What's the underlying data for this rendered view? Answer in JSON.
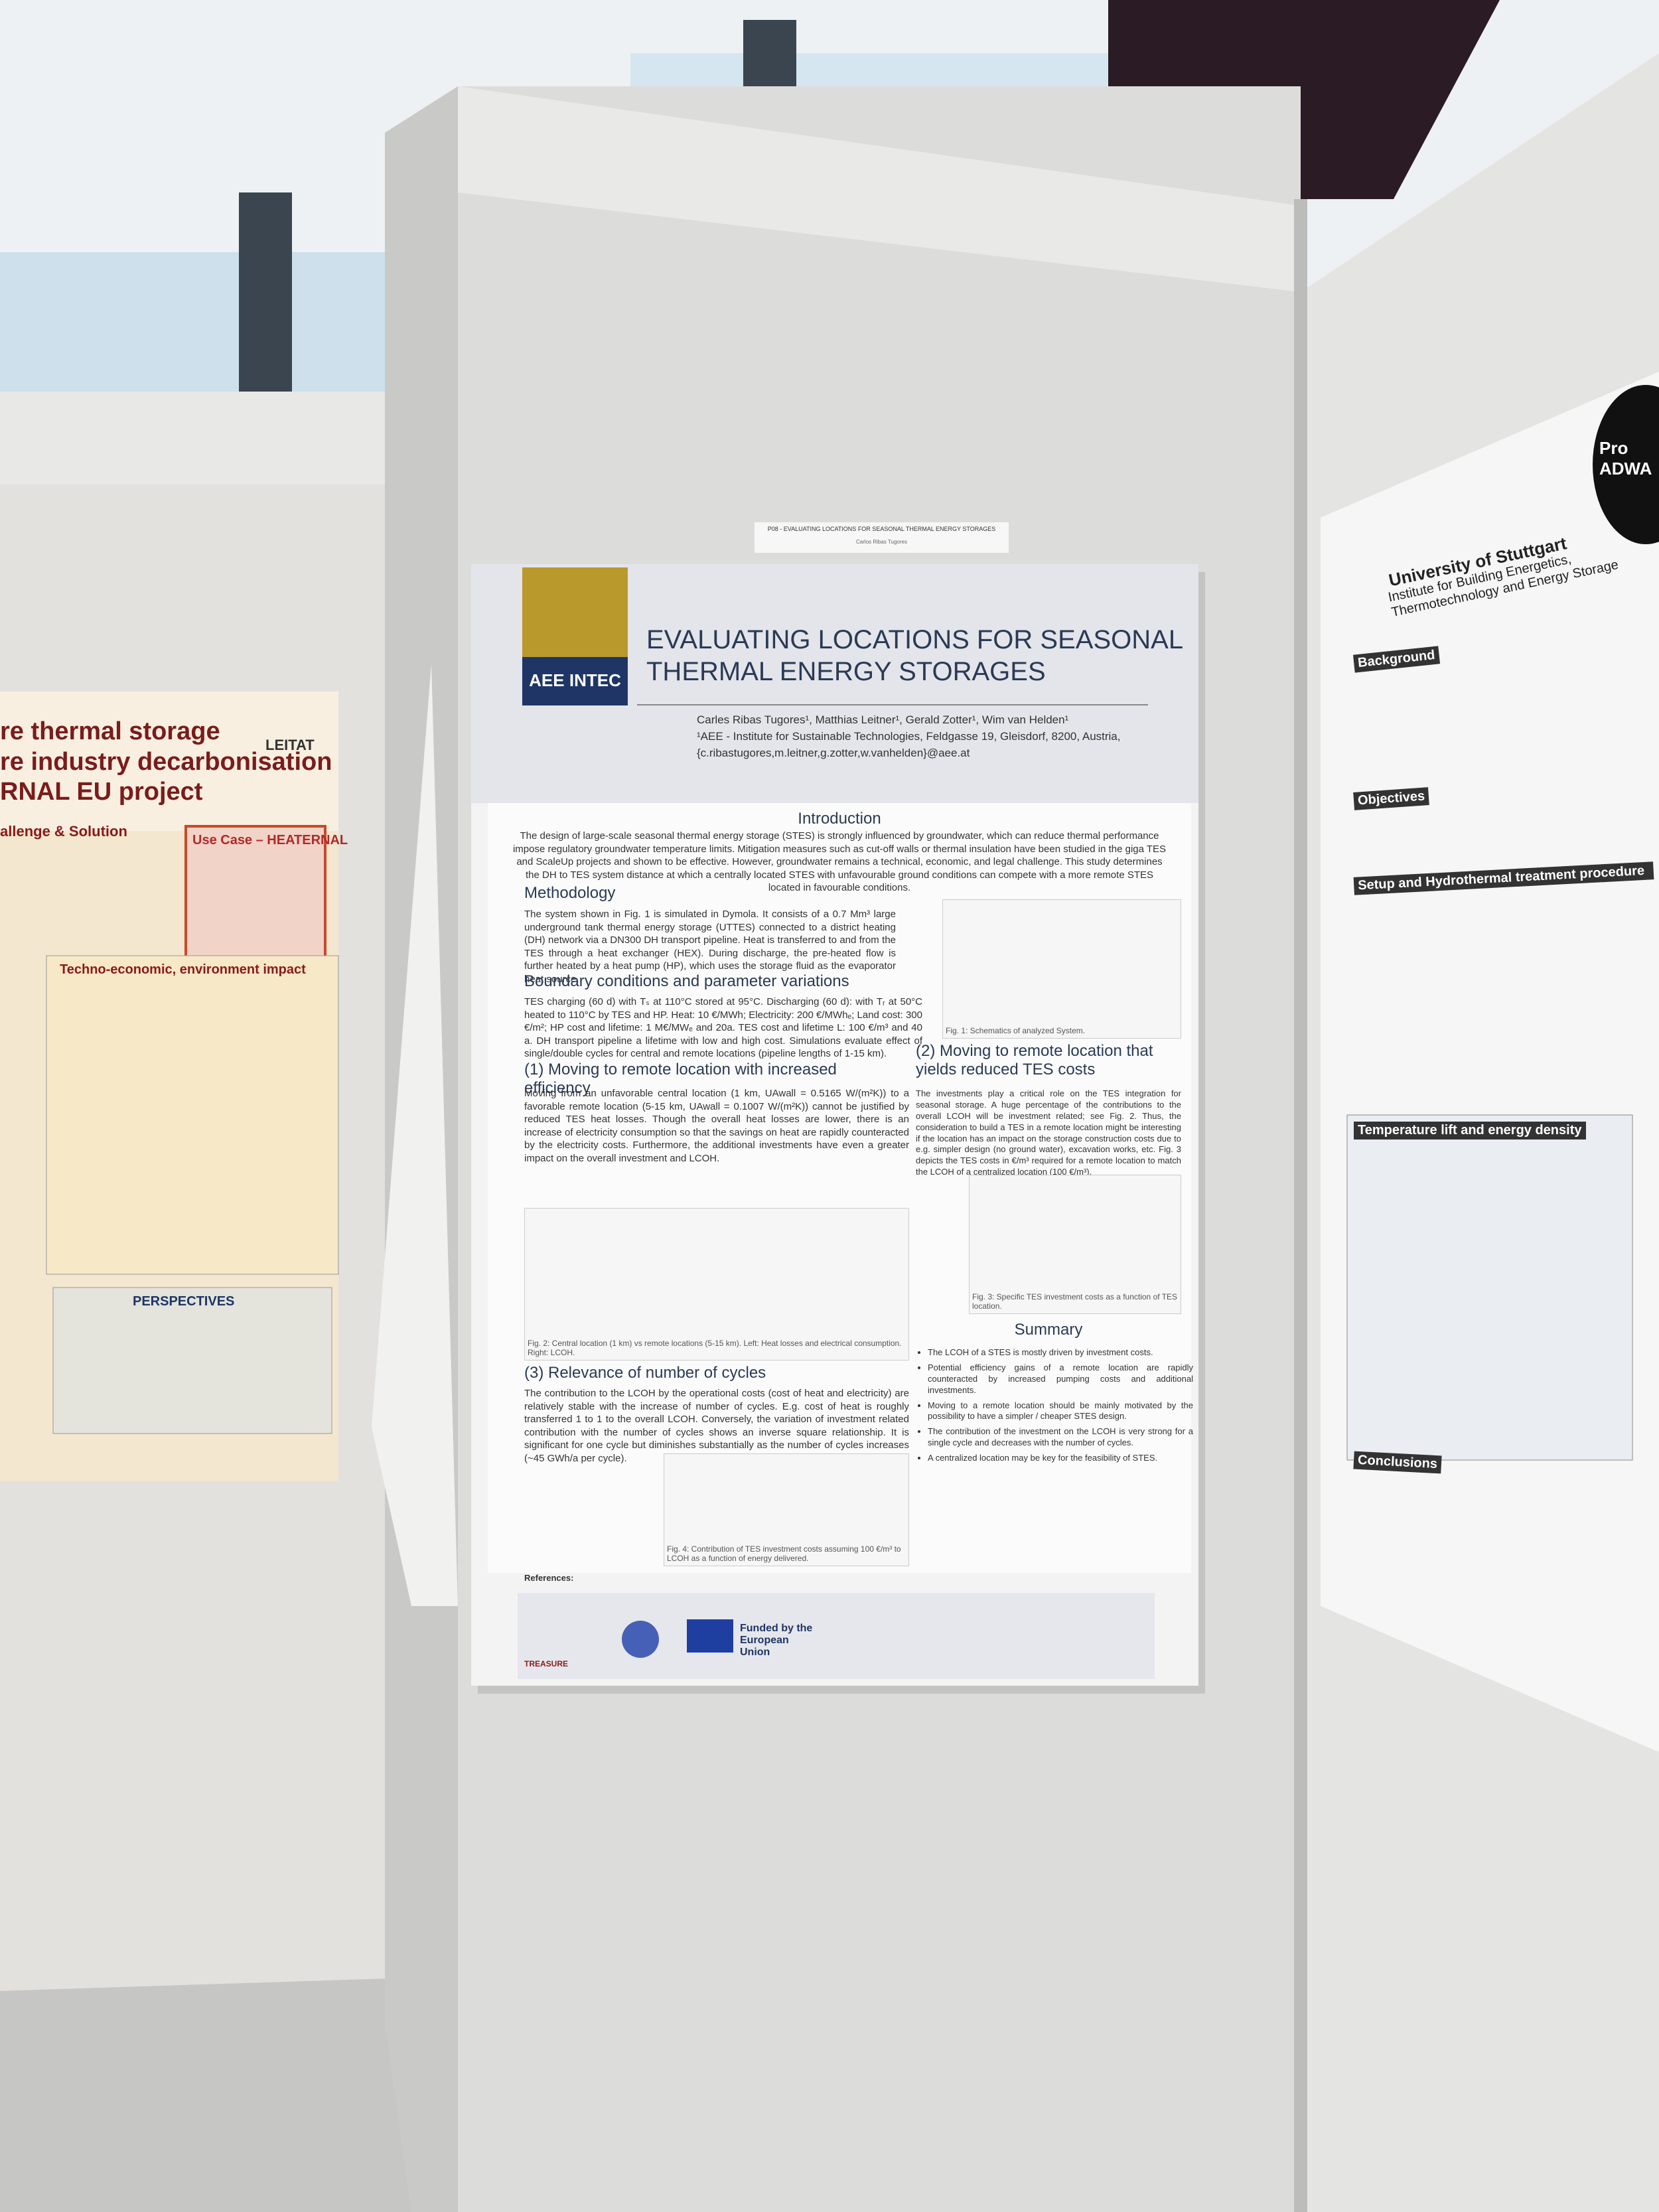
{
  "label_strip": {
    "title": "P08 - EVALUATING LOCATIONS FOR SEASONAL THERMAL ENERGY STORAGES",
    "author": "Carlos Ribas Tugores"
  },
  "poster": {
    "logo": "AEE INTEC",
    "title": "EVALUATING LOCATIONS FOR SEASONAL THERMAL ENERGY STORAGES",
    "authors": "Carles Ribas Tugores¹, Matthias Leitner¹, Gerald Zotter¹, Wim van Helden¹",
    "affiliation": "¹AEE - Institute for Sustainable Technologies, Feldgasse 19, Gleisdorf, 8200, Austria,",
    "email": "{c.ribastugores,m.leitner,g.zotter,w.vanhelden}@aee.at",
    "intro": {
      "heading": "Introduction",
      "text": "The design of large-scale seasonal thermal energy storage (STES) is strongly influenced by groundwater, which can reduce thermal performance impose regulatory groundwater temperature limits. Mitigation measures such as cut-off walls or thermal insulation have been studied in the giga TES and ScaleUp projects and shown to be effective. However, groundwater remains a technical, economic, and legal challenge. This study determines the DH to TES system distance at which a centrally located STES with unfavourable ground conditions can compete with a more remote STES located in favourable conditions."
    },
    "methodology": {
      "heading": "Methodology",
      "text": "The system shown in Fig. 1 is simulated in Dymola. It consists of a 0.7 Mm³ large underground tank thermal energy storage (UTTES) connected to a district heating (DH) network via a DN300 DH transport pipeline. Heat is transferred to and from the TES through a heat exchanger (HEX). During discharge, the pre-heated flow is further heated by a heat pump (HP), which uses the storage fluid as the evaporator heat source.",
      "figure": "Fig. 1: Schematics of analyzed System."
    },
    "boundary": {
      "heading": "Boundary conditions and parameter variations",
      "text": "TES charging (60 d) with Tₛ at 110°C stored at 95°C. Discharging (60 d): with Tᵣ at 50°C heated to 110°C by TES and HP. Heat: 10 €/MWh; Electricity: 200 €/MWhₑ; Land cost: 300 €/m²; HP cost and lifetime: 1 M€/MWₑ and 20a. TES cost and lifetime L: 100 €/m³ and 40 a. DH transport pipeline a lifetime with low and high cost. Simulations evaluate effect of single/double cycles for central and remote locations (pipeline lengths of 1-15 km)."
    },
    "case1": {
      "heading": "(1) Moving to remote location with increased efficiency",
      "text": "Moving from an unfavorable central location (1 km, UAwall = 0.5165 W/(m²K)) to a favorable remote location (5-15 km, UAwall = 0.1007 W/(m²K)) cannot be justified by reduced TES heat losses. Though the overall heat losses are lower, there is an increase of electricity consumption so that the savings on heat are rapidly counteracted by the electricity costs. Furthermore, the additional investments have even a greater impact on the overall investment and LCOH.",
      "figure": "Fig. 2: Central location (1 km) vs remote locations (5-15 km). Left: Heat losses and electrical consumption. Right: LCOH."
    },
    "case2": {
      "heading": "(2) Moving to remote location that yields reduced TES costs",
      "text": "The investments play a critical role on the TES integration for seasonal storage. A huge percentage of the contributions to the overall LCOH will be investment related; see Fig. 2. Thus, the consideration to build a TES in a remote location might be interesting if the location has an impact on the storage construction costs due to e.g. simpler design (no ground water), excavation works, etc. Fig. 3 depicts the TES costs in €/m³ required for a remote location to match the LCOH of a centralized location (100 €/m³).",
      "figure": "Fig. 3: Specific TES investment costs as a function of TES location."
    },
    "case3": {
      "heading": "(3) Relevance of number of cycles",
      "text": "The contribution to the LCOH by the operational costs (cost of heat and electricity) are relatively stable with the increase of number of cycles. E.g. cost of heat is roughly transferred 1 to 1 to the overall LCOH. Conversely, the variation of investment related contribution with the number of cycles shows an inverse square relationship. It is significant for one cycle but diminishes substantially as the number of cycles increases (~45 GWh/a per cycle).",
      "figure": "Fig. 4: Contribution of TES investment costs assuming 100 €/m³ to LCOH as a function of energy delivered."
    },
    "summary": {
      "heading": "Summary",
      "items": [
        "The LCOH of a STES is mostly driven by investment costs.",
        "Potential efficiency gains of a remote location are rapidly counteracted by increased pumping costs and additional investments.",
        "Moving to a remote location should be mainly motivated by the possibility to have a simpler / cheaper STES design.",
        "The contribution of the investment on the LCOH is very strong for a single cycle and decreases with the number of cycles.",
        "A centralized location may be key for the feasibility of STES."
      ]
    },
    "references": "References:",
    "footer": {
      "treasure": "TREASURE",
      "funded": "Funded by the European Union"
    }
  },
  "left_poster": {
    "title_lines": [
      "re thermal storage",
      "re industry decarbonisation",
      "RNAL EU project"
    ],
    "headings": [
      "allenge & Solution",
      "Use Case – HEATERNAL",
      "Techno-economic, environment impact",
      "PERSPECTIVES"
    ],
    "logo": "LEITAT"
  },
  "right_poster": {
    "badge": "Pro ADWA",
    "university": "University of Stuttgart",
    "institute": "Institute for Building Energetics, Thermotechnology and Energy Storage",
    "headings": [
      "Background",
      "Objectives",
      "Setup and Hydrothermal treatment procedure",
      "Temperature lift and energy density",
      "Conclusions"
    ]
  }
}
